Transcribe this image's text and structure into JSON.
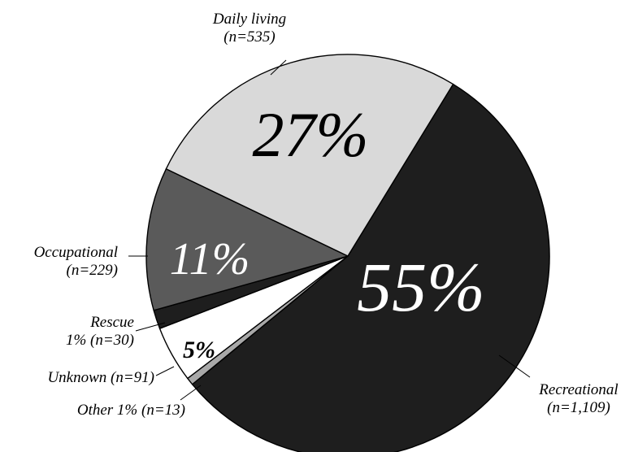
{
  "chart_data": {
    "type": "pie",
    "slices": [
      {
        "name": "Recreational",
        "n": "n=1,109",
        "value": 55,
        "pct_label": "55%",
        "color": "#1e1e1e",
        "label_color": "#ffffff",
        "ext_lines": [
          "Recreational",
          "(n=1,109)"
        ]
      },
      {
        "name": "Other",
        "n": "n=13",
        "value": 0.6,
        "pct_label": "",
        "color": "#a8a8a8",
        "label_color": "#000000",
        "ext_lines": [
          "Other 1% (n=13)"
        ]
      },
      {
        "name": "Unknown",
        "n": "n=91",
        "value": 4.5,
        "pct_label": "5%",
        "color": "#ffffff",
        "label_color": "#000000",
        "ext_lines": [
          "Unknown (n=91)"
        ]
      },
      {
        "name": "Rescue",
        "n": "n=30",
        "value": 1.5,
        "pct_label": "",
        "color": "#1e1e1e",
        "label_color": "#ffffff",
        "ext_lines": [
          "Rescue",
          "1% (n=30)"
        ]
      },
      {
        "name": "Occupational",
        "n": "n=229",
        "value": 11.4,
        "pct_label": "11%",
        "color": "#5a5a5a",
        "label_color": "#ffffff",
        "ext_lines": [
          "Occupational",
          "(n=229)"
        ]
      },
      {
        "name": "Daily living",
        "n": "n=535",
        "value": 26.5,
        "pct_label": "27%",
        "color": "#d9d9d9",
        "label_color": "#000000",
        "ext_lines": [
          "Daily living",
          "(n=535)"
        ]
      }
    ]
  }
}
